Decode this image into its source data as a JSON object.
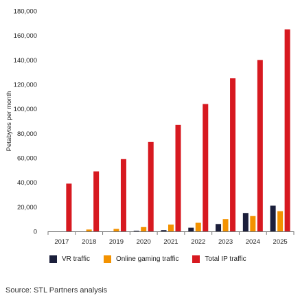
{
  "chart_data": {
    "type": "bar",
    "ylabel": "Petabytes per month",
    "ylim": [
      0,
      180000
    ],
    "yticks": [
      0,
      20000,
      40000,
      60000,
      80000,
      100000,
      120000,
      140000,
      160000,
      180000
    ],
    "ytick_labels": [
      "0",
      "20,000",
      "40,000",
      "60,000",
      "80,000",
      "100,000",
      "120,000",
      "140,000",
      "160,000",
      "180,000"
    ],
    "categories": [
      "2017",
      "2018",
      "2019",
      "2020",
      "2021",
      "2022",
      "2023",
      "2024",
      "2025"
    ],
    "series": [
      {
        "name": "VR traffic",
        "color": "#1b1f3b",
        "values": [
          0,
          0,
          0,
          500,
          1000,
          3000,
          6000,
          15000,
          21000
        ]
      },
      {
        "name": "Online gaming traffic",
        "color": "#f39200",
        "values": [
          0,
          1500,
          2000,
          3500,
          5500,
          7000,
          10000,
          12500,
          16500
        ]
      },
      {
        "name": "Total IP traffic",
        "color": "#d71920",
        "values": [
          39000,
          49000,
          59000,
          73000,
          87000,
          104000,
          125000,
          140000,
          165000
        ]
      }
    ],
    "grid": false,
    "legend_position": "bottom"
  },
  "source": "Source: STL Partners analysis"
}
